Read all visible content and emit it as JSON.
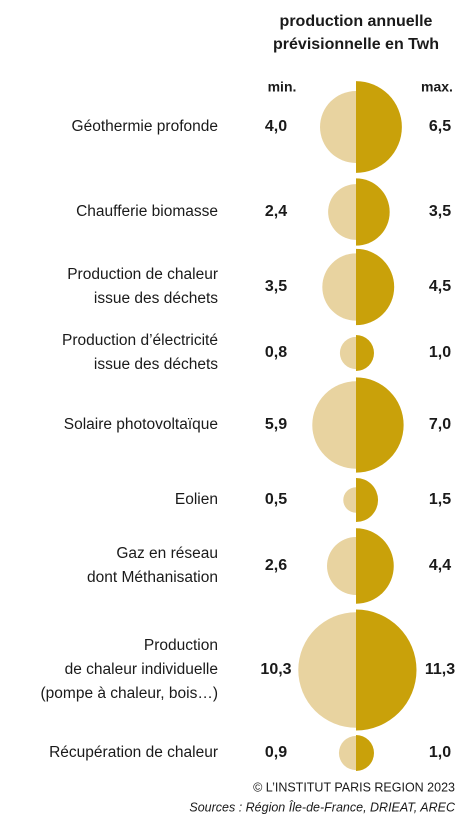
{
  "chart_data": {
    "type": "half-circle",
    "title": [
      "production annuelle",
      "prévisionnelle en Twh"
    ],
    "categories": [
      [
        "Géothermie profonde"
      ],
      [
        "Chaufferie biomasse"
      ],
      [
        "Production de chaleur",
        "issue des déchets"
      ],
      [
        "Production d’électricité",
        "issue des déchets"
      ],
      [
        "Solaire photovoltaïque"
      ],
      [
        "Eolien"
      ],
      [
        "Gaz en réseau",
        "dont Méthanisation"
      ],
      [
        "Production",
        "de chaleur individuelle",
        "(pompe à chaleur, bois…)"
      ],
      [
        "Récupération de chaleur"
      ]
    ],
    "series": [
      {
        "name": "min.",
        "color": "#e8d3a0",
        "values": [
          4.0,
          2.4,
          3.5,
          0.8,
          5.9,
          0.5,
          2.6,
          10.3,
          0.9
        ],
        "value_labels": [
          "4,0",
          "2,4",
          "3,5",
          "0,8",
          "5,9",
          "0,5",
          "2,6",
          "10,3",
          "0,9"
        ]
      },
      {
        "name": "max.",
        "color": "#c9a10a",
        "values": [
          6.5,
          3.5,
          4.5,
          1.0,
          7.0,
          1.5,
          4.4,
          11.3,
          1.0
        ],
        "value_labels": [
          "6,5",
          "3,5",
          "4,5",
          "1,0",
          "7,0",
          "1,5",
          "4,4",
          "11,3",
          "1,0"
        ]
      }
    ],
    "credit": "© L’INSTITUT PARIS REGION 2023",
    "source": "Sources : Région Île-de-France, DRIEAT, AREC"
  }
}
